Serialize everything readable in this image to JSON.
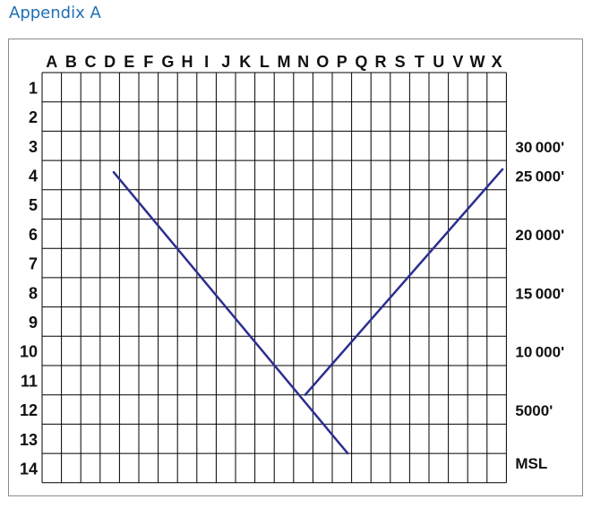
{
  "heading": "Appendix A",
  "columns": [
    "A",
    "B",
    "C",
    "D",
    "E",
    "F",
    "G",
    "H",
    "I",
    "J",
    "K",
    "L",
    "M",
    "N",
    "O",
    "P",
    "Q",
    "R",
    "S",
    "T",
    "U",
    "V",
    "W",
    "X"
  ],
  "rows": [
    "1",
    "2",
    "3",
    "4",
    "5",
    "6",
    "7",
    "8",
    "9",
    "10",
    "11",
    "12",
    "13",
    "14"
  ],
  "altitudes": [
    {
      "label": "30 000'",
      "row_boundary": 3.5
    },
    {
      "label": "25 000'",
      "row_boundary": 4.5
    },
    {
      "label": "20 000'",
      "row_boundary": 6.5
    },
    {
      "label": "15 000'",
      "row_boundary": 8.5
    },
    {
      "label": "10 000'",
      "row_boundary": 10.5
    },
    {
      "label": "5000'",
      "row_boundary": 12.5
    },
    {
      "label": "MSL",
      "row_boundary": 14.3
    }
  ],
  "line_color": "#2b2f8f",
  "lines": [
    {
      "from": [
        3.7,
        4.4
      ],
      "to": [
        15.8,
        14.0
      ]
    },
    {
      "from": [
        13.6,
        12.0
      ],
      "to": [
        23.8,
        4.3
      ]
    }
  ]
}
